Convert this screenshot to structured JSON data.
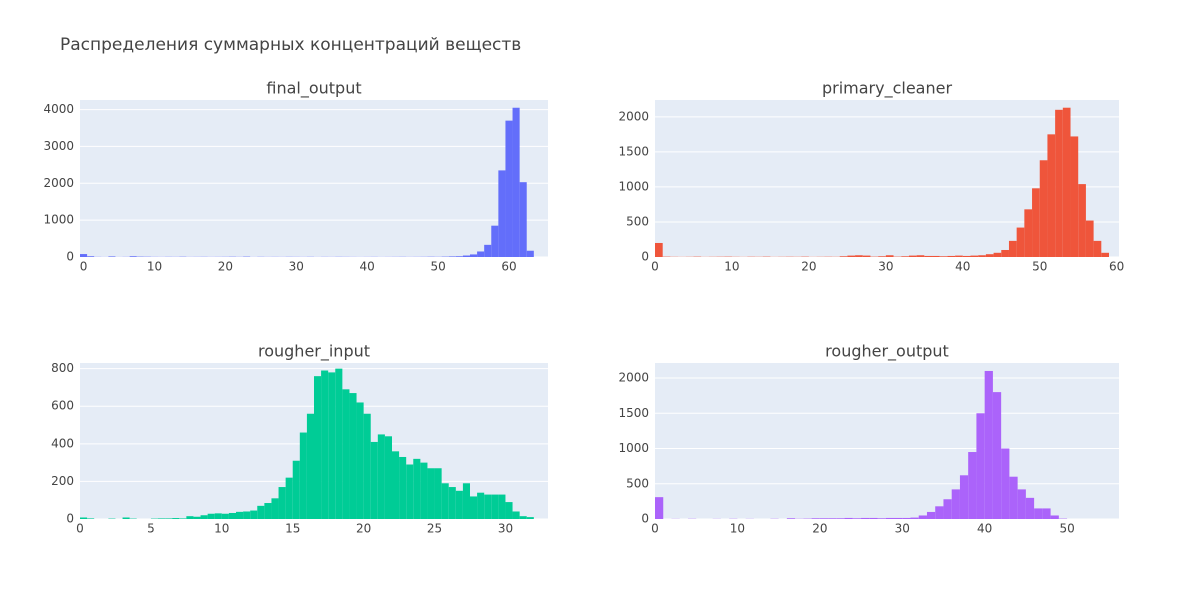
{
  "title": "Распределения суммарных концентраций веществ",
  "chart_data": [
    {
      "type": "histogram",
      "title": "final_output",
      "color": "#636efa",
      "grid": true,
      "xlim": [
        -0.5,
        65.5
      ],
      "ylim": [
        0,
        4260
      ],
      "xticks": [
        0,
        10,
        20,
        30,
        40,
        50,
        60
      ],
      "yticks": [
        0,
        1000,
        2000,
        3000,
        4000
      ],
      "bins": [
        -0.5,
        0.5,
        1.5,
        2.5,
        3.5,
        4.5,
        5.5,
        6.5,
        7.5,
        8.5,
        9.5,
        10.5,
        11.5,
        12.5,
        13.5,
        14.5,
        15.5,
        16.5,
        17.5,
        18.5,
        19.5,
        20.5,
        21.5,
        22.5,
        23.5,
        24.5,
        25.5,
        26.5,
        27.5,
        28.5,
        29.5,
        30.5,
        31.5,
        32.5,
        33.5,
        34.5,
        35.5,
        36.5,
        37.5,
        38.5,
        39.5,
        40.5,
        41.5,
        42.5,
        43.5,
        44.5,
        45.5,
        46.5,
        47.5,
        48.5,
        49.5,
        50.5,
        51.5,
        52.5,
        53.5,
        54.5,
        55.5,
        56.5,
        57.5,
        58.5,
        59.5,
        60.5,
        61.5,
        62.5,
        63.5
      ],
      "values": [
        80,
        20,
        5,
        3,
        15,
        3,
        5,
        20,
        10,
        8,
        5,
        4,
        6,
        5,
        8,
        4,
        5,
        6,
        4,
        5,
        6,
        8,
        5,
        10,
        3,
        6,
        4,
        5,
        4,
        6,
        5,
        4,
        6,
        3,
        5,
        4,
        6,
        5,
        4,
        3,
        4,
        5,
        3,
        4,
        5,
        6,
        4,
        5,
        6,
        8,
        6,
        10,
        15,
        20,
        40,
        70,
        150,
        330,
        850,
        2350,
        3700,
        4050,
        2030,
        170
      ]
    },
    {
      "type": "histogram",
      "title": "primary_cleaner",
      "color": "#ef553b",
      "grid": true,
      "xlim": [
        0,
        60.3
      ],
      "ylim": [
        0,
        2240
      ],
      "xticks": [
        0,
        10,
        20,
        30,
        40,
        50,
        60
      ],
      "yticks": [
        0,
        500,
        1000,
        1500,
        2000
      ],
      "bins": [
        0,
        1,
        2,
        3,
        4,
        5,
        6,
        7,
        8,
        9,
        10,
        11,
        12,
        13,
        14,
        15,
        16,
        17,
        18,
        19,
        20,
        21,
        22,
        23,
        24,
        25,
        26,
        27,
        28,
        29,
        30,
        31,
        32,
        33,
        34,
        35,
        36,
        37,
        38,
        39,
        40,
        41,
        42,
        43,
        44,
        45,
        46,
        47,
        48,
        49,
        50,
        51,
        52,
        53,
        54,
        55,
        56,
        57,
        58,
        59
      ],
      "values": [
        200,
        5,
        3,
        2,
        3,
        5,
        2,
        3,
        4,
        5,
        3,
        2,
        4,
        3,
        5,
        2,
        3,
        4,
        3,
        5,
        2,
        3,
        4,
        3,
        10,
        20,
        25,
        20,
        5,
        10,
        25,
        5,
        10,
        20,
        25,
        15,
        15,
        10,
        15,
        20,
        15,
        20,
        25,
        40,
        60,
        100,
        230,
        420,
        680,
        980,
        1380,
        1750,
        2100,
        2130,
        1720,
        1040,
        520,
        230,
        60
      ]
    },
    {
      "type": "histogram",
      "title": "rougher_input",
      "color": "#00cc96",
      "grid": true,
      "xlim": [
        0,
        33
      ],
      "ylim": [
        0,
        830
      ],
      "xticks": [
        0,
        5,
        10,
        15,
        20,
        25,
        30
      ],
      "yticks": [
        0,
        200,
        400,
        600,
        800
      ],
      "bins": [
        0,
        0.5,
        1,
        1.5,
        2,
        2.5,
        3,
        3.5,
        4,
        4.5,
        5,
        5.5,
        6,
        6.5,
        7,
        7.5,
        8,
        8.5,
        9,
        9.5,
        10,
        10.5,
        11,
        11.5,
        12,
        12.5,
        13,
        13.5,
        14,
        14.5,
        15,
        15.5,
        16,
        16.5,
        17,
        17.5,
        18,
        18.5,
        19,
        19.5,
        20,
        20.5,
        21,
        21.5,
        22,
        22.5,
        23,
        23.5,
        24,
        24.5,
        25,
        25.5,
        26,
        26.5,
        27,
        27.5,
        28,
        28.5,
        29,
        29.5,
        30,
        30.5,
        31,
        31.5,
        32
      ],
      "values": [
        8,
        3,
        0,
        0,
        2,
        0,
        8,
        2,
        0,
        0,
        2,
        3,
        3,
        5,
        3,
        15,
        12,
        20,
        28,
        30,
        28,
        32,
        38,
        40,
        45,
        70,
        85,
        110,
        170,
        220,
        310,
        460,
        560,
        760,
        790,
        780,
        800,
        690,
        670,
        620,
        560,
        410,
        450,
        440,
        360,
        330,
        290,
        320,
        300,
        270,
        270,
        190,
        170,
        150,
        190,
        120,
        140,
        130,
        130,
        130,
        90,
        40,
        15,
        10
      ]
    },
    {
      "type": "histogram",
      "title": "rougher_output",
      "color": "#ab63fa",
      "grid": true,
      "xlim": [
        0,
        56.3
      ],
      "ylim": [
        0,
        2213
      ],
      "xticks": [
        0,
        10,
        20,
        30,
        40,
        50
      ],
      "yticks": [
        0,
        500,
        1000,
        1500,
        2000
      ],
      "bins": [
        0,
        1,
        2,
        3,
        4,
        5,
        6,
        7,
        8,
        9,
        10,
        11,
        12,
        13,
        14,
        15,
        16,
        17,
        18,
        19,
        20,
        21,
        22,
        23,
        24,
        25,
        26,
        27,
        28,
        29,
        30,
        31,
        32,
        33,
        34,
        35,
        36,
        37,
        38,
        39,
        40,
        41,
        42,
        43,
        44,
        45,
        46,
        47,
        48,
        49,
        50
      ],
      "values": [
        310,
        0,
        2,
        0,
        3,
        0,
        0,
        2,
        0,
        3,
        0,
        2,
        0,
        0,
        3,
        0,
        10,
        3,
        5,
        10,
        10,
        10,
        10,
        15,
        10,
        15,
        15,
        10,
        15,
        15,
        15,
        20,
        50,
        100,
        180,
        280,
        420,
        620,
        950,
        1500,
        2100,
        1800,
        1000,
        600,
        420,
        300,
        150,
        150,
        50,
        5
      ]
    }
  ]
}
